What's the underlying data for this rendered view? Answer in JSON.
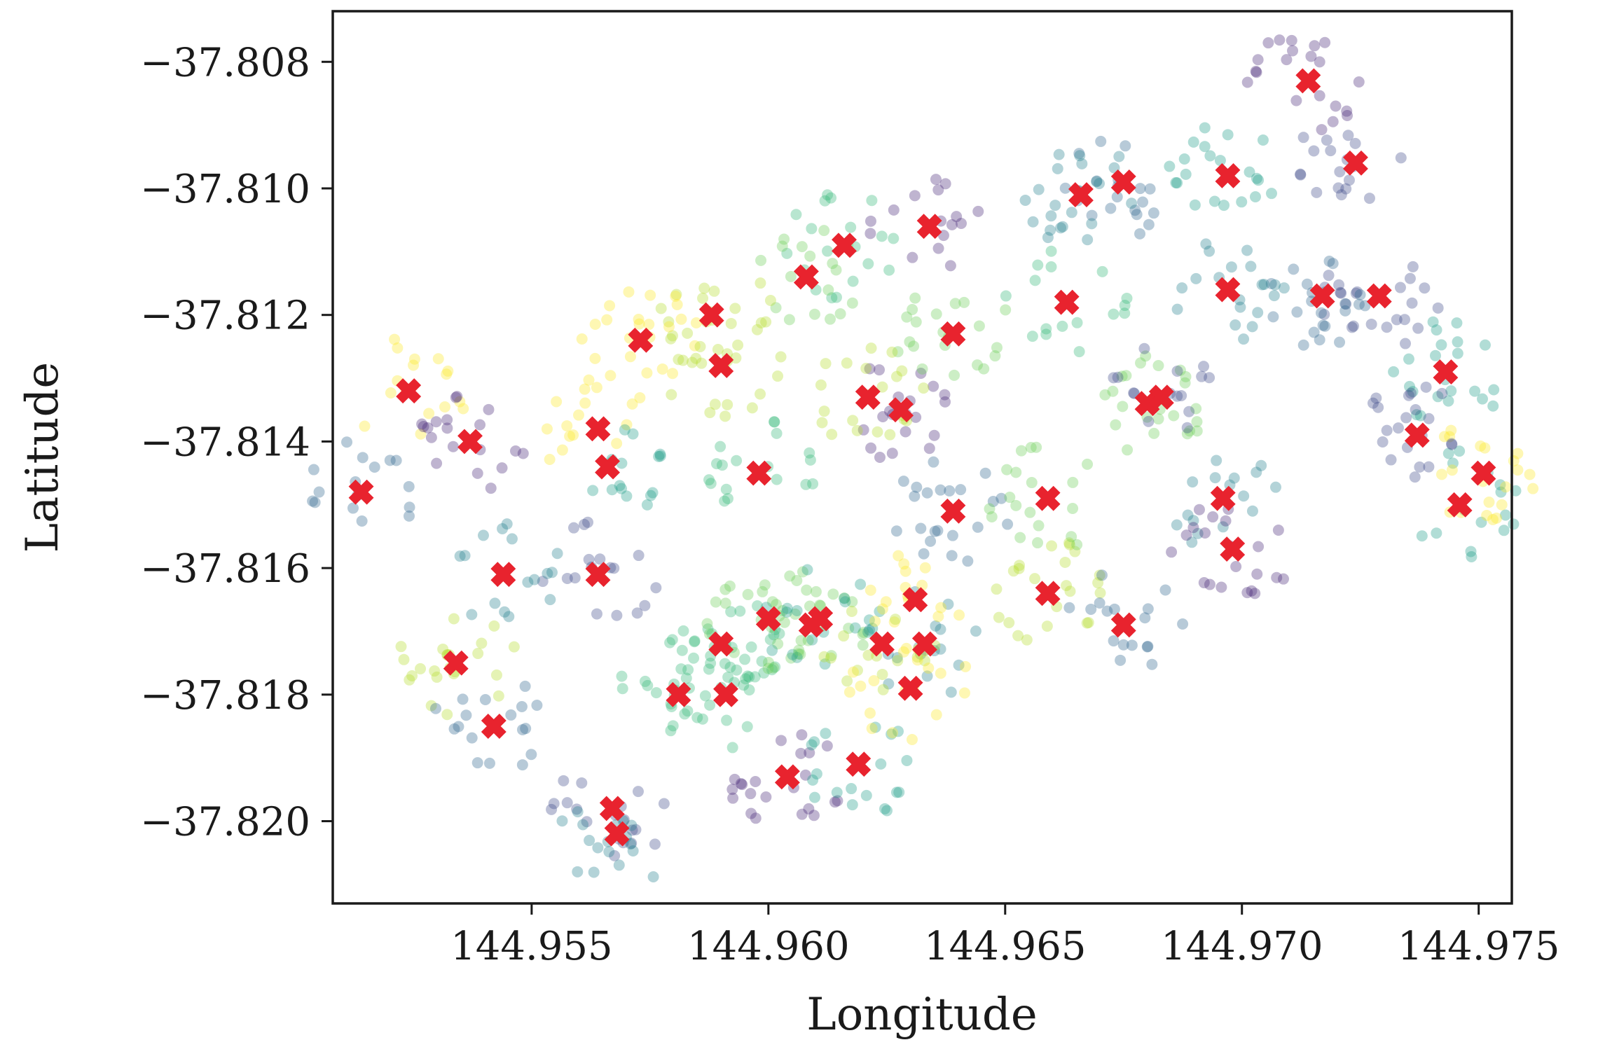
{
  "chart_data": {
    "type": "scatter",
    "title": "",
    "xlabel": "Longitude",
    "ylabel": "Latitude",
    "xlim": [
      144.9508,
      144.9757
    ],
    "ylim": [
      -37.8213,
      -37.8072
    ],
    "xticks": [
      {
        "value": 144.955,
        "label": "144.955"
      },
      {
        "value": 144.96,
        "label": "144.960"
      },
      {
        "value": 144.965,
        "label": "144.965"
      },
      {
        "value": 144.97,
        "label": "144.970"
      },
      {
        "value": 144.975,
        "label": "144.975"
      }
    ],
    "yticks": [
      {
        "value": -37.808,
        "label": "−37.808"
      },
      {
        "value": -37.81,
        "label": "−37.810"
      },
      {
        "value": -37.812,
        "label": "−37.812"
      },
      {
        "value": -37.814,
        "label": "−37.814"
      },
      {
        "value": -37.816,
        "label": "−37.816"
      },
      {
        "value": -37.818,
        "label": "−37.818"
      },
      {
        "value": -37.82,
        "label": "−37.820"
      }
    ],
    "grid": false,
    "legend": "none",
    "colors": {
      "centroid": "#e8232e",
      "axis": "#1a1a1a",
      "cluster_palette": [
        "#482878",
        "#3e4a89",
        "#31688e",
        "#26828e",
        "#1f9e89",
        "#35b779",
        "#6ece58",
        "#b5de2b",
        "#fde725"
      ]
    },
    "point_opacity": 0.35,
    "centroids": {
      "x": [
        144.9714,
        144.9724,
        144.9675,
        144.9666,
        144.9697,
        144.9616,
        144.9608,
        144.9588,
        144.9573,
        144.9634,
        144.9729,
        144.9717,
        144.9697,
        144.9743,
        144.9663,
        144.968,
        144.959,
        144.9564,
        144.9628,
        144.9683,
        144.9639,
        144.9696,
        144.9746,
        144.9598,
        144.9639,
        144.9621,
        144.9524,
        144.9537,
        144.9564,
        144.9514,
        144.9544,
        144.9566,
        144.959,
        144.9609,
        144.9659,
        144.9751,
        144.9698,
        144.9737,
        144.9675,
        144.9633,
        144.9611,
        144.9581,
        144.9659,
        144.9534,
        144.9631,
        144.9604,
        144.9567,
        144.9542,
        144.9568,
        144.9619,
        144.9591,
        144.96,
        144.9624,
        144.963
      ]
    },
    "centroid_y": [
      -37.8083,
      -37.8096,
      -37.8099,
      -37.8101,
      -37.8098,
      -37.8109,
      -37.8114,
      -37.812,
      -37.8124,
      -37.8106,
      -37.8117,
      -37.8117,
      -37.8116,
      -37.8129,
      -37.8118,
      -37.8134,
      -37.8128,
      -37.8138,
      -37.8135,
      -37.8133,
      -37.8151,
      -37.8149,
      -37.815,
      -37.8145,
      -37.8123,
      -37.8133,
      -37.8132,
      -37.814,
      -37.8161,
      -37.8148,
      -37.8161,
      -37.8144,
      -37.8172,
      -37.8169,
      -37.8164,
      -37.8145,
      -37.8157,
      -37.8139,
      -37.8169,
      -37.8172,
      -37.8168,
      -37.818,
      -37.8149,
      -37.8175,
      -37.8165,
      -37.8193,
      -37.8198,
      -37.8185,
      -37.8202,
      -37.8191,
      -37.818,
      -37.8168,
      -37.8172,
      -37.8179
    ]
  }
}
